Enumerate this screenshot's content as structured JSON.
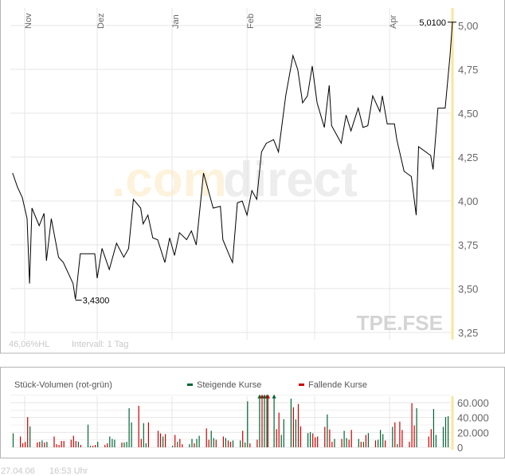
{
  "chart_data": [
    {
      "type": "line",
      "symbol": "TPE.FSE",
      "watermark": {
        "part1": ".com",
        "part2": "direct"
      },
      "x_ticks": [
        {
          "label": "Nov",
          "date": "2005-11-01"
        },
        {
          "label": "Dez",
          "date": "2005-12-01"
        },
        {
          "label": "Jan",
          "date": "2006-01-01"
        },
        {
          "label": "Feb",
          "date": "2006-02-01"
        },
        {
          "label": "Mär",
          "date": "2006-03-01"
        },
        {
          "label": "Apr",
          "date": "2006-04-01"
        }
      ],
      "y_ticks": [
        {
          "v": 5.0,
          "label": "5,00"
        },
        {
          "v": 4.75,
          "label": "4,75"
        },
        {
          "v": 4.5,
          "label": "4,50"
        },
        {
          "v": 4.25,
          "label": "4,25"
        },
        {
          "v": 4.0,
          "label": "4,00"
        },
        {
          "v": 3.75,
          "label": "3,75"
        },
        {
          "v": 3.5,
          "label": "3,50"
        },
        {
          "v": 3.25,
          "label": "3,25"
        }
      ],
      "ylim": [
        3.2,
        5.1
      ],
      "xlim": [
        "2005-10-27",
        "2006-04-27"
      ],
      "grid": true,
      "annotations": {
        "low": {
          "date": "2005-11-22",
          "value": 3.43,
          "label": "3,4300"
        },
        "last": {
          "date": "2006-04-27",
          "value": 5.01,
          "label": "5,0100"
        }
      },
      "info": {
        "range": "46,06%HL",
        "interval": "Intervall: 1 Tag"
      },
      "series": [
        {
          "points": [
            [
              "2005-10-27",
              4.15
            ],
            [
              "2005-10-29",
              4.07
            ],
            [
              "2005-10-31",
              4.01
            ],
            [
              "2005-11-02",
              3.89
            ],
            [
              "2005-11-03",
              3.52
            ],
            [
              "2005-11-04",
              3.95
            ],
            [
              "2005-11-07",
              3.85
            ],
            [
              "2005-11-09",
              3.92
            ],
            [
              "2005-11-10",
              3.65
            ],
            [
              "2005-11-12",
              3.89
            ],
            [
              "2005-11-15",
              3.67
            ],
            [
              "2005-11-17",
              3.64
            ],
            [
              "2005-11-21",
              3.52
            ],
            [
              "2005-11-22",
              3.43
            ],
            [
              "2005-11-24",
              3.69
            ],
            [
              "2005-11-30",
              3.69
            ],
            [
              "2005-12-01",
              3.55
            ],
            [
              "2005-12-03",
              3.72
            ],
            [
              "2005-12-06",
              3.6
            ],
            [
              "2005-12-09",
              3.75
            ],
            [
              "2005-12-12",
              3.67
            ],
            [
              "2005-12-14",
              3.72
            ],
            [
              "2005-12-16",
              4.0
            ],
            [
              "2005-12-19",
              3.95
            ],
            [
              "2005-12-20",
              3.86
            ],
            [
              "2005-12-22",
              3.91
            ],
            [
              "2005-12-24",
              3.78
            ],
            [
              "2005-12-26",
              3.77
            ],
            [
              "2005-12-29",
              3.64
            ],
            [
              "2005-12-31",
              3.78
            ],
            [
              "2006-01-02",
              3.68
            ],
            [
              "2006-01-04",
              3.81
            ],
            [
              "2006-01-07",
              3.77
            ],
            [
              "2006-01-09",
              3.82
            ],
            [
              "2006-01-11",
              3.74
            ],
            [
              "2006-01-14",
              4.15
            ],
            [
              "2006-01-16",
              4.05
            ],
            [
              "2006-01-18",
              3.95
            ],
            [
              "2006-01-21",
              3.96
            ],
            [
              "2006-01-22",
              3.77
            ],
            [
              "2006-01-25",
              3.67
            ],
            [
              "2006-01-26",
              3.64
            ],
            [
              "2006-01-28",
              3.98
            ],
            [
              "2006-01-30",
              3.99
            ],
            [
              "2006-02-01",
              3.91
            ],
            [
              "2006-02-03",
              4.05
            ],
            [
              "2006-02-05",
              4.0
            ],
            [
              "2006-02-07",
              4.27
            ],
            [
              "2006-02-09",
              4.32
            ],
            [
              "2006-02-12",
              4.34
            ],
            [
              "2006-02-14",
              4.27
            ],
            [
              "2006-02-17",
              4.59
            ],
            [
              "2006-02-20",
              4.82
            ],
            [
              "2006-02-22",
              4.74
            ],
            [
              "2006-02-24",
              4.55
            ],
            [
              "2006-02-26",
              4.59
            ],
            [
              "2006-02-28",
              4.76
            ],
            [
              "2006-03-02",
              4.55
            ],
            [
              "2006-03-05",
              4.41
            ],
            [
              "2006-03-07",
              4.65
            ],
            [
              "2006-03-08",
              4.42
            ],
            [
              "2006-03-12",
              4.32
            ],
            [
              "2006-03-14",
              4.48
            ],
            [
              "2006-03-16",
              4.39
            ],
            [
              "2006-03-19",
              4.52
            ],
            [
              "2006-03-21",
              4.41
            ],
            [
              "2006-03-23",
              4.42
            ],
            [
              "2006-03-25",
              4.59
            ],
            [
              "2006-03-28",
              4.5
            ],
            [
              "2006-03-29",
              4.59
            ],
            [
              "2006-03-31",
              4.43
            ],
            [
              "2006-04-03",
              4.43
            ],
            [
              "2006-04-04",
              4.34
            ],
            [
              "2006-04-07",
              4.16
            ],
            [
              "2006-04-10",
              4.13
            ],
            [
              "2006-04-12",
              3.91
            ],
            [
              "2006-04-13",
              4.3
            ],
            [
              "2006-04-18",
              4.25
            ],
            [
              "2006-04-19",
              4.17
            ],
            [
              "2006-04-21",
              4.52
            ],
            [
              "2006-04-24",
              4.52
            ],
            [
              "2006-04-26",
              4.82
            ],
            [
              "2006-04-27",
              5.01
            ]
          ]
        }
      ]
    },
    {
      "type": "bar",
      "title": "Stück-Volumen (rot-grün)",
      "legend": [
        {
          "name": "Steigende Kurse",
          "color": "#006633"
        },
        {
          "name": "Fallende Kurse",
          "color": "#cc0000"
        }
      ],
      "legend_position": "top",
      "y_ticks": [
        {
          "v": 60000,
          "label": "60.000"
        },
        {
          "v": 40000,
          "label": "40.000"
        },
        {
          "v": 20000,
          "label": "20.000"
        },
        {
          "v": 0,
          "label": "0"
        }
      ],
      "ylim": [
        0,
        70000
      ],
      "bars": [
        [
          "2005-10-28",
          18700,
          "up"
        ],
        [
          "2005-10-31",
          14500,
          "down"
        ],
        [
          "2005-11-01",
          5300,
          "down"
        ],
        [
          "2005-11-02",
          7100,
          "down"
        ],
        [
          "2005-11-03",
          40600,
          "down"
        ],
        [
          "2005-11-04",
          28200,
          "up"
        ],
        [
          "2005-11-07",
          6400,
          "down"
        ],
        [
          "2005-11-08",
          7400,
          "down"
        ],
        [
          "2005-11-09",
          9200,
          "up"
        ],
        [
          "2005-11-10",
          6400,
          "down"
        ],
        [
          "2005-11-11",
          7400,
          "up"
        ],
        [
          "2005-11-14",
          14500,
          "down"
        ],
        [
          "2005-11-15",
          4200,
          "down"
        ],
        [
          "2005-11-16",
          3200,
          "down"
        ],
        [
          "2005-11-17",
          8500,
          "down"
        ],
        [
          "2005-11-18",
          8500,
          "down"
        ],
        [
          "2005-11-21",
          10200,
          "down"
        ],
        [
          "2005-11-22",
          15500,
          "down"
        ],
        [
          "2005-11-23",
          8500,
          "down"
        ],
        [
          "2005-11-24",
          7400,
          "up"
        ],
        [
          "2005-11-25",
          3200,
          "down"
        ],
        [
          "2005-11-28",
          30400,
          "up"
        ],
        [
          "2005-11-29",
          2100,
          "up"
        ],
        [
          "2005-11-30",
          2100,
          "down"
        ],
        [
          "2005-12-01",
          3200,
          "down"
        ],
        [
          "2005-12-02",
          7400,
          "up"
        ],
        [
          "2005-12-05",
          3200,
          "down"
        ],
        [
          "2005-12-06",
          5300,
          "down"
        ],
        [
          "2005-12-07",
          14500,
          "up"
        ],
        [
          "2005-12-08",
          11300,
          "up"
        ],
        [
          "2005-12-09",
          10200,
          "up"
        ],
        [
          "2005-12-12",
          6400,
          "down"
        ],
        [
          "2005-12-13",
          6400,
          "up"
        ],
        [
          "2005-12-14",
          7400,
          "up"
        ],
        [
          "2005-12-15",
          52600,
          "up"
        ],
        [
          "2005-12-16",
          33500,
          "up"
        ],
        [
          "2005-12-19",
          55800,
          "down"
        ],
        [
          "2005-12-20",
          11300,
          "down"
        ],
        [
          "2005-12-21",
          32500,
          "up"
        ],
        [
          "2005-12-22",
          5300,
          "up"
        ],
        [
          "2005-12-23",
          33500,
          "down"
        ],
        [
          "2005-12-27",
          22200,
          "down"
        ],
        [
          "2005-12-28",
          18700,
          "down"
        ],
        [
          "2005-12-29",
          14500,
          "up"
        ],
        [
          "2005-12-30",
          17700,
          "down"
        ],
        [
          "2006-01-02",
          2100,
          "up"
        ],
        [
          "2006-01-03",
          16600,
          "down"
        ],
        [
          "2006-01-04",
          7400,
          "up"
        ],
        [
          "2006-01-05",
          11300,
          "down"
        ],
        [
          "2006-01-06",
          4200,
          "down"
        ],
        [
          "2006-01-09",
          4200,
          "up"
        ],
        [
          "2006-01-10",
          11300,
          "up"
        ],
        [
          "2006-01-11",
          5300,
          "down"
        ],
        [
          "2006-01-12",
          11300,
          "up"
        ],
        [
          "2006-01-13",
          15500,
          "up"
        ],
        [
          "2006-01-16",
          25400,
          "down"
        ],
        [
          "2006-01-17",
          10200,
          "down"
        ],
        [
          "2006-01-18",
          22200,
          "up"
        ],
        [
          "2006-01-19",
          12400,
          "up"
        ],
        [
          "2006-01-20",
          10200,
          "down"
        ],
        [
          "2006-01-23",
          14500,
          "down"
        ],
        [
          "2006-01-24",
          12400,
          "up"
        ],
        [
          "2006-01-25",
          9200,
          "down"
        ],
        [
          "2006-01-26",
          7400,
          "down"
        ],
        [
          "2006-01-27",
          9200,
          "up"
        ],
        [
          "2006-01-30",
          9200,
          "up"
        ],
        [
          "2006-01-31",
          22200,
          "down"
        ],
        [
          "2006-02-01",
          6400,
          "up"
        ],
        [
          "2006-02-02",
          61800,
          "up"
        ],
        [
          "2006-02-03",
          5300,
          "down"
        ],
        [
          "2006-02-06",
          10200,
          "down"
        ],
        [
          "2006-02-07",
          75000,
          "up"
        ],
        [
          "2006-02-08",
          75000,
          "down"
        ],
        [
          "2006-02-09",
          75000,
          "up"
        ],
        [
          "2006-02-10",
          75000,
          "up"
        ],
        [
          "2006-02-10",
          75000,
          "down"
        ],
        [
          "2006-02-13",
          75000,
          "up"
        ],
        [
          "2006-02-14",
          24400,
          "down"
        ],
        [
          "2006-02-15",
          46600,
          "down"
        ],
        [
          "2006-02-16",
          16600,
          "up"
        ],
        [
          "2006-02-17",
          37800,
          "up"
        ],
        [
          "2006-02-20",
          65300,
          "up"
        ],
        [
          "2006-02-21",
          53700,
          "down"
        ],
        [
          "2006-02-22",
          37400,
          "up"
        ],
        [
          "2006-02-23",
          58200,
          "down"
        ],
        [
          "2006-02-24",
          28200,
          "down"
        ],
        [
          "2006-02-27",
          19100,
          "up"
        ],
        [
          "2006-02-28",
          20500,
          "up"
        ],
        [
          "2006-03-01",
          18700,
          "down"
        ],
        [
          "2006-03-02",
          13400,
          "down"
        ],
        [
          "2006-03-03",
          14500,
          "down"
        ],
        [
          "2006-03-06",
          27500,
          "down"
        ],
        [
          "2006-03-07",
          44100,
          "up"
        ],
        [
          "2006-03-08",
          24000,
          "down"
        ],
        [
          "2006-03-09",
          7400,
          "down"
        ],
        [
          "2006-03-10",
          11300,
          "up"
        ],
        [
          "2006-03-13",
          11300,
          "down"
        ],
        [
          "2006-03-14",
          22200,
          "up"
        ],
        [
          "2006-03-15",
          12400,
          "up"
        ],
        [
          "2006-03-16",
          10200,
          "down"
        ],
        [
          "2006-03-17",
          23300,
          "down"
        ],
        [
          "2006-03-20",
          11300,
          "up"
        ],
        [
          "2006-03-21",
          7400,
          "down"
        ],
        [
          "2006-03-22",
          7400,
          "up"
        ],
        [
          "2006-03-23",
          16600,
          "down"
        ],
        [
          "2006-03-24",
          19100,
          "up"
        ],
        [
          "2006-03-27",
          9200,
          "down"
        ],
        [
          "2006-03-28",
          10200,
          "up"
        ],
        [
          "2006-03-29",
          23300,
          "up"
        ],
        [
          "2006-03-30",
          17700,
          "up"
        ],
        [
          "2006-03-31",
          9200,
          "down"
        ],
        [
          "2006-04-03",
          27500,
          "up"
        ],
        [
          "2006-04-04",
          33500,
          "down"
        ],
        [
          "2006-04-05",
          4200,
          "up"
        ],
        [
          "2006-04-06",
          34600,
          "down"
        ],
        [
          "2006-04-07",
          23300,
          "down"
        ],
        [
          "2006-04-10",
          7400,
          "down"
        ],
        [
          "2006-04-11",
          59300,
          "down"
        ],
        [
          "2006-04-12",
          29300,
          "down"
        ],
        [
          "2006-04-13",
          52600,
          "up"
        ],
        [
          "2006-04-18",
          14500,
          "down"
        ],
        [
          "2006-04-19",
          24400,
          "down"
        ],
        [
          "2006-04-20",
          51500,
          "up"
        ],
        [
          "2006-04-21",
          16600,
          "up"
        ],
        [
          "2006-04-24",
          27500,
          "up"
        ],
        [
          "2006-04-25",
          40600,
          "up"
        ],
        [
          "2006-04-26",
          41700,
          "up"
        ]
      ]
    }
  ],
  "footer": {
    "date": "27.04.06",
    "time": "16:53 Uhr"
  }
}
